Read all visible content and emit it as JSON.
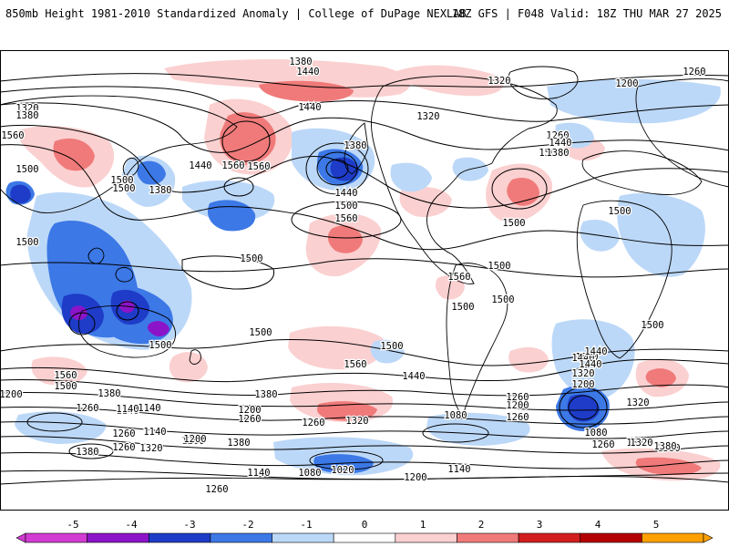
{
  "header": {
    "title": "850mb Height 1981-2010 Standardized Anomaly | College of DuPage NEXLAB",
    "run_info": "18Z GFS | F048 Valid: 18Z THU MAR 27 2025"
  },
  "colorbar": {
    "ticks": [
      "-5",
      "-4",
      "-3",
      "-2",
      "-1",
      "0",
      "1",
      "2",
      "3",
      "4",
      "5"
    ],
    "colors": [
      "#d23cd2",
      "#8c14c8",
      "#1e3cc8",
      "#3c78e6",
      "#bcd8f8",
      "#ffffff",
      "#fbd0d0",
      "#f07a7a",
      "#d21e1e",
      "#b40000",
      "#ffa000"
    ]
  },
  "contour_labels": [
    {
      "text": "1380"
    },
    {
      "text": "1440"
    },
    {
      "text": "1320"
    },
    {
      "text": "1260"
    },
    {
      "text": "1200"
    },
    {
      "text": "1320"
    },
    {
      "text": "1380"
    },
    {
      "text": "1440"
    },
    {
      "text": "1560"
    },
    {
      "text": "1320"
    },
    {
      "text": "1260"
    },
    {
      "text": "1380"
    },
    {
      "text": "1440"
    },
    {
      "text": "1500"
    },
    {
      "text": "1500"
    },
    {
      "text": "1560"
    },
    {
      "text": "1440"
    },
    {
      "text": "1380"
    },
    {
      "text": "1500"
    },
    {
      "text": "1560"
    },
    {
      "text": "1500"
    },
    {
      "text": "1500"
    },
    {
      "text": "1440"
    },
    {
      "text": "1380"
    },
    {
      "text": "1500"
    },
    {
      "text": "1560"
    },
    {
      "text": "1500"
    },
    {
      "text": "1500"
    },
    {
      "text": "1560"
    },
    {
      "text": "1500"
    },
    {
      "text": "1500"
    },
    {
      "text": "1500"
    },
    {
      "text": "1500"
    },
    {
      "text": "1500"
    },
    {
      "text": "1500"
    },
    {
      "text": "1500"
    },
    {
      "text": "1500"
    },
    {
      "text": "1560"
    },
    {
      "text": "1500"
    },
    {
      "text": "1560"
    },
    {
      "text": "1440"
    },
    {
      "text": "1500"
    },
    {
      "text": "1440"
    },
    {
      "text": "1320"
    },
    {
      "text": "1200"
    },
    {
      "text": "1380"
    },
    {
      "text": "1200"
    },
    {
      "text": "1260"
    },
    {
      "text": "1140"
    },
    {
      "text": "1380"
    },
    {
      "text": "1320"
    },
    {
      "text": "1260"
    },
    {
      "text": "1200"
    },
    {
      "text": "1140"
    },
    {
      "text": "1200"
    },
    {
      "text": "1080"
    },
    {
      "text": "1260"
    },
    {
      "text": "1320"
    },
    {
      "text": "1080"
    },
    {
      "text": "1260"
    },
    {
      "text": "1380"
    },
    {
      "text": "1080"
    },
    {
      "text": "1260"
    },
    {
      "text": "1320"
    },
    {
      "text": "1380"
    },
    {
      "text": "1140"
    },
    {
      "text": "1080"
    },
    {
      "text": "1020"
    },
    {
      "text": "1140"
    },
    {
      "text": "1200"
    },
    {
      "text": "1260"
    },
    {
      "text": "1140"
    },
    {
      "text": "1260"
    },
    {
      "text": "1320"
    },
    {
      "text": "1380"
    },
    {
      "text": "1440"
    },
    {
      "text": "1380"
    },
    {
      "text": "1260"
    },
    {
      "text": "1200"
    },
    {
      "text": "1140"
    },
    {
      "text": "1200"
    },
    {
      "text": "1260"
    },
    {
      "text": "1320"
    },
    {
      "text": "1440"
    }
  ]
}
